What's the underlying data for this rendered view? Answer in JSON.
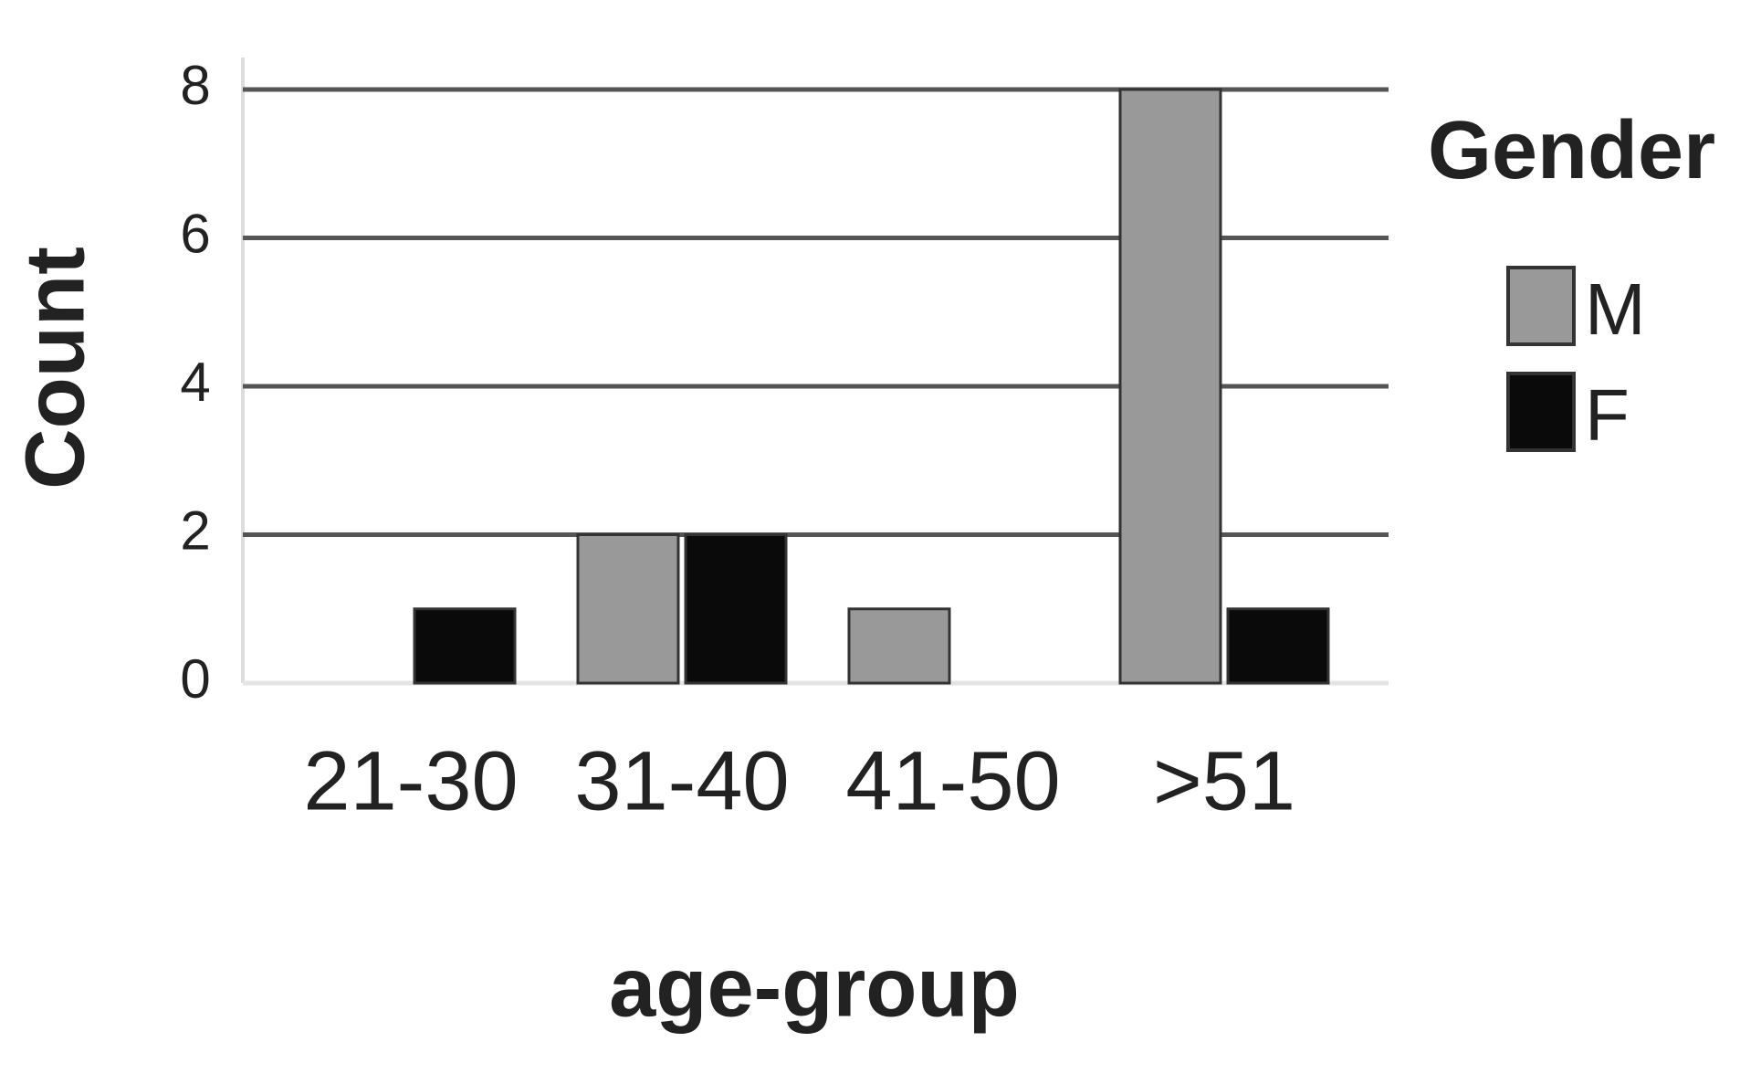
{
  "chart_data": {
    "type": "bar",
    "categories": [
      "21-30",
      "31-40",
      "41-50",
      ">51"
    ],
    "series": [
      {
        "name": "M",
        "color": "#999999",
        "values": [
          0,
          2,
          1,
          8
        ]
      },
      {
        "name": "F",
        "color": "#0a0a0a",
        "values": [
          1,
          2,
          0,
          1
        ]
      }
    ],
    "ylim": [
      0,
      8
    ],
    "yticks": [
      0,
      2,
      4,
      6,
      8
    ],
    "grid": true,
    "y_label": "Count",
    "x_label": "age-group",
    "legend_title": "Gender",
    "legend": "right"
  }
}
